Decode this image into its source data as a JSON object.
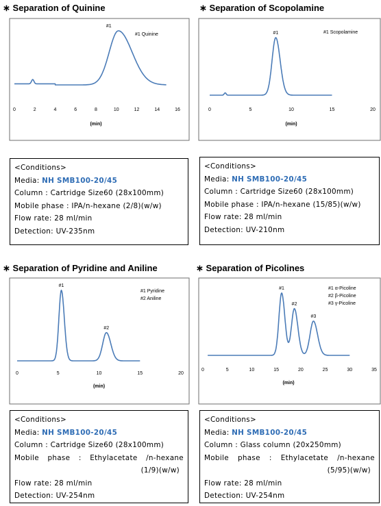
{
  "star": "∗",
  "chart_data": [
    {
      "type": "line",
      "title": "Separation of Quinine",
      "xlabel": "(min)",
      "xlim": [
        0,
        16
      ],
      "xticks": [
        "0",
        "2",
        "4",
        "6",
        "8",
        "10",
        "12",
        "14",
        "16"
      ],
      "peaks": [
        {
          "label": "#1",
          "x": 10.2,
          "height": 1.0,
          "width": 0.9
        }
      ],
      "minor_peaks": [
        {
          "x": 1.8,
          "height": 0.08
        }
      ],
      "legend": [
        "#1 Quinine"
      ],
      "baseline_drift": true,
      "grid": false
    },
    {
      "type": "line",
      "title": "Separation of Scopolamine",
      "xlabel": "(min)",
      "xlim": [
        0,
        20
      ],
      "xticks": [
        "0",
        "5",
        "10",
        "15",
        "20"
      ],
      "peaks": [
        {
          "label": "#1",
          "x": 8.1,
          "height": 1.0,
          "width": 0.45
        }
      ],
      "minor_peaks": [
        {
          "x": 1.9,
          "height": 0.04
        }
      ],
      "legend": [
        "#1 Scopolamine"
      ],
      "grid": false
    },
    {
      "type": "line",
      "title": "Separation of Pyridine and Aniline",
      "xlabel": "(min)",
      "xlim": [
        0,
        20
      ],
      "xticks": [
        "0",
        "5",
        "10",
        "15",
        "20"
      ],
      "peaks": [
        {
          "label": "#1",
          "x": 5.4,
          "height": 1.0,
          "width": 0.3
        },
        {
          "label": "#2",
          "x": 10.9,
          "height": 0.4,
          "width": 0.45
        }
      ],
      "legend": [
        "#1 Pyridine",
        "#2 Aniline"
      ],
      "grid": false
    },
    {
      "type": "line",
      "title": "Separation of Picolines",
      "xlabel": "(min)",
      "xlim": [
        0,
        35
      ],
      "xticks": [
        "0",
        "5",
        "10",
        "15",
        "20",
        "25",
        "30",
        "35"
      ],
      "peaks": [
        {
          "label": "#1",
          "x": 16.1,
          "height": 1.0,
          "width": 0.55
        },
        {
          "label": "#2",
          "x": 18.7,
          "height": 0.75,
          "width": 0.6
        },
        {
          "label": "#3",
          "x": 22.6,
          "height": 0.55,
          "width": 0.7
        }
      ],
      "legend": [
        "#1 α-Picoline",
        "#2 β-Picoline",
        "#3 γ-Picoline"
      ],
      "grid": false
    }
  ],
  "conditions": [
    {
      "header": "<Conditions>",
      "media_label": "Media:",
      "media_value": "NH SMB100-20/45",
      "column": "Column : Cartridge Size60 (28x100mm)",
      "mobile_phase": "Mobile phase : IPA/n-hexane (2/8)(w/w)",
      "flow_rate": "Flow rate: 28 ml/min",
      "detection": "Detection: UV-235nm"
    },
    {
      "header": "<Conditions>",
      "media_label": "Media:",
      "media_value": "NH SMB100-20/45",
      "column": "Column : Cartridge Size60 (28x100mm)",
      "mobile_phase": "Mobile phase : IPA/n-hexane (15/85)(w/w)",
      "flow_rate": "Flow rate: 28 ml/min",
      "detection": "Detection: UV-210nm"
    },
    {
      "header": "<Conditions>",
      "media_label": "Media:",
      "media_value": "NH SMB100-20/45",
      "column": "Column : Cartridge Size60 (28x100mm)",
      "mobile_phase_words": [
        "Mobile",
        "phase",
        ":",
        "Ethylacetate",
        "/n-hexane"
      ],
      "mobile_phase_cont": "(1/9)(w/w)",
      "flow_rate": "Flow rate: 28 ml/min",
      "detection": "Detection: UV-254nm"
    },
    {
      "header": "<Conditions>",
      "media_label": "Media:",
      "media_value": "NH SMB100-20/45",
      "column": "Column : Glass column (20x250mm)",
      "mobile_phase_words": [
        "Mobile",
        "phase",
        ":",
        "Ethylacetate",
        "/n-hexane"
      ],
      "mobile_phase_cont": "(5/95)(w/w)",
      "flow_rate": "Flow rate: 28 ml/min",
      "detection": "Detection: UV-254nm"
    }
  ]
}
